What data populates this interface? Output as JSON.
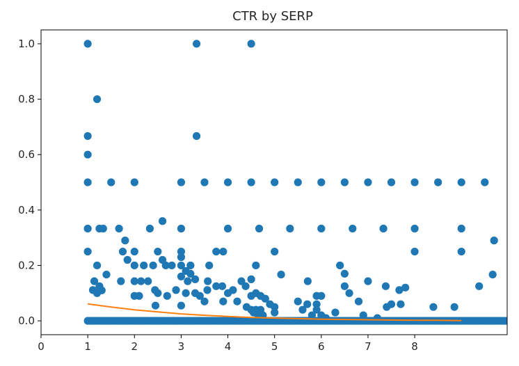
{
  "chart_data": {
    "type": "scatter",
    "title": "CTR by SERP",
    "xlabel": "",
    "ylabel": "",
    "xlim": [
      0,
      9.98
    ],
    "ylim": [
      -0.05,
      1.05
    ],
    "grid": false,
    "x_ticks": [
      0,
      1,
      2,
      3,
      4,
      5,
      6,
      7,
      8
    ],
    "y_ticks": [
      0.0,
      0.2,
      0.4,
      0.6,
      0.8,
      1.0
    ],
    "x_tick_labels": [
      "0",
      "1",
      "2",
      "3",
      "4",
      "5",
      "6",
      "7",
      "8"
    ],
    "y_tick_labels": [
      "0.0",
      "0.2",
      "0.4",
      "0.6",
      "0.8",
      "1.0"
    ],
    "colors": {
      "scatter": "#1f77b4",
      "line": "#ff7f0e"
    },
    "series": [
      {
        "type": "scatter",
        "points": [
          [
            1.0,
            1.0
          ],
          [
            3.33,
            1.0
          ],
          [
            4.5,
            1.0
          ],
          [
            1.2,
            0.8
          ],
          [
            1.0,
            0.667
          ],
          [
            3.33,
            0.667
          ],
          [
            1.0,
            0.6
          ],
          [
            1.0,
            0.5
          ],
          [
            1.5,
            0.5
          ],
          [
            2.0,
            0.5
          ],
          [
            3.0,
            0.5
          ],
          [
            3.5,
            0.5
          ],
          [
            4.0,
            0.5
          ],
          [
            4.5,
            0.5
          ],
          [
            5.0,
            0.5
          ],
          [
            5.5,
            0.5
          ],
          [
            6.0,
            0.5
          ],
          [
            6.5,
            0.5
          ],
          [
            7.0,
            0.5
          ],
          [
            7.5,
            0.5
          ],
          [
            8.0,
            0.5
          ],
          [
            8.5,
            0.5
          ],
          [
            9.0,
            0.5
          ],
          [
            9.5,
            0.5
          ],
          [
            1.0,
            0.333
          ],
          [
            1.25,
            0.333
          ],
          [
            1.33,
            0.333
          ],
          [
            1.67,
            0.333
          ],
          [
            2.33,
            0.333
          ],
          [
            3.0,
            0.333
          ],
          [
            4.0,
            0.333
          ],
          [
            4.67,
            0.333
          ],
          [
            5.33,
            0.333
          ],
          [
            6.0,
            0.333
          ],
          [
            6.67,
            0.333
          ],
          [
            7.33,
            0.333
          ],
          [
            8.0,
            0.333
          ],
          [
            9.0,
            0.333
          ],
          [
            2.6,
            0.36
          ],
          [
            1.8,
            0.29
          ],
          [
            9.7,
            0.29
          ],
          [
            1.0,
            0.25
          ],
          [
            1.75,
            0.25
          ],
          [
            2.0,
            0.25
          ],
          [
            2.5,
            0.25
          ],
          [
            3.0,
            0.25
          ],
          [
            3.75,
            0.25
          ],
          [
            3.9,
            0.25
          ],
          [
            5.0,
            0.25
          ],
          [
            8.0,
            0.25
          ],
          [
            9.0,
            0.25
          ],
          [
            1.85,
            0.22
          ],
          [
            3.0,
            0.23
          ],
          [
            2.6,
            0.22
          ],
          [
            6.4,
            0.2
          ],
          [
            6.5,
            0.17
          ],
          [
            9.67,
            0.167
          ],
          [
            1.4,
            0.167
          ],
          [
            5.14,
            0.167
          ],
          [
            1.2,
            0.2
          ],
          [
            2.0,
            0.2
          ],
          [
            2.2,
            0.2
          ],
          [
            2.4,
            0.2
          ],
          [
            2.67,
            0.2
          ],
          [
            2.8,
            0.2
          ],
          [
            3.0,
            0.2
          ],
          [
            3.2,
            0.2
          ],
          [
            3.6,
            0.2
          ],
          [
            4.6,
            0.2
          ],
          [
            3.1,
            0.18
          ],
          [
            3.2,
            0.17
          ],
          [
            3.0,
            0.16
          ],
          [
            3.3,
            0.15
          ],
          [
            4.5,
            0.15
          ],
          [
            1.14,
            0.143
          ],
          [
            1.71,
            0.143
          ],
          [
            2.0,
            0.143
          ],
          [
            2.14,
            0.143
          ],
          [
            2.29,
            0.143
          ],
          [
            3.14,
            0.143
          ],
          [
            3.57,
            0.143
          ],
          [
            5.71,
            0.143
          ],
          [
            7.0,
            0.143
          ],
          [
            4.29,
            0.143
          ],
          [
            1.25,
            0.125
          ],
          [
            3.75,
            0.125
          ],
          [
            3.88,
            0.125
          ],
          [
            6.5,
            0.125
          ],
          [
            7.38,
            0.125
          ],
          [
            9.38,
            0.125
          ],
          [
            4.38,
            0.125
          ],
          [
            1.11,
            0.111
          ],
          [
            2.44,
            0.111
          ],
          [
            2.89,
            0.111
          ],
          [
            3.56,
            0.111
          ],
          [
            4.11,
            0.111
          ],
          [
            7.67,
            0.111
          ],
          [
            6.6,
            0.1
          ],
          [
            7.8,
            0.12
          ],
          [
            1.2,
            0.1
          ],
          [
            1.3,
            0.11
          ],
          [
            2.5,
            0.1
          ],
          [
            3.1,
            0.1
          ],
          [
            3.3,
            0.1
          ],
          [
            4.0,
            0.1
          ],
          [
            4.6,
            0.1
          ],
          [
            4.7,
            0.09
          ],
          [
            4.8,
            0.08
          ],
          [
            2.0,
            0.09
          ],
          [
            2.1,
            0.09
          ],
          [
            2.7,
            0.09
          ],
          [
            3.4,
            0.09
          ],
          [
            4.5,
            0.09
          ],
          [
            5.9,
            0.09
          ],
          [
            6.0,
            0.09
          ],
          [
            3.5,
            0.07
          ],
          [
            3.9,
            0.07
          ],
          [
            4.2,
            0.07
          ],
          [
            5.5,
            0.07
          ],
          [
            5.7,
            0.06
          ],
          [
            5.9,
            0.06
          ],
          [
            6.8,
            0.07
          ],
          [
            7.5,
            0.06
          ],
          [
            7.7,
            0.06
          ],
          [
            2.45,
            0.055
          ],
          [
            3.0,
            0.055
          ],
          [
            4.4,
            0.05
          ],
          [
            4.9,
            0.06
          ],
          [
            5.0,
            0.05
          ],
          [
            7.4,
            0.05
          ],
          [
            8.4,
            0.05
          ],
          [
            8.85,
            0.05
          ],
          [
            4.5,
            0.04
          ],
          [
            4.6,
            0.04
          ],
          [
            4.7,
            0.04
          ],
          [
            5.6,
            0.04
          ],
          [
            5.9,
            0.04
          ],
          [
            6.3,
            0.03
          ],
          [
            4.55,
            0.03
          ],
          [
            4.65,
            0.02
          ],
          [
            4.75,
            0.02
          ],
          [
            5.0,
            0.03
          ],
          [
            5.8,
            0.02
          ],
          [
            6.0,
            0.02
          ],
          [
            6.1,
            0.01
          ],
          [
            6.9,
            0.02
          ],
          [
            7.2,
            0.01
          ]
        ],
        "baseline": {
          "y": 0.0,
          "x_range": [
            1.0,
            9.98
          ]
        }
      },
      {
        "type": "line",
        "points": [
          [
            1.0,
            0.061
          ],
          [
            1.5,
            0.05
          ],
          [
            2.0,
            0.04
          ],
          [
            2.5,
            0.032
          ],
          [
            3.0,
            0.025
          ],
          [
            3.5,
            0.02
          ],
          [
            4.0,
            0.016
          ],
          [
            4.5,
            0.012
          ],
          [
            5.0,
            0.01
          ],
          [
            5.5,
            0.008
          ],
          [
            6.0,
            0.006
          ],
          [
            6.5,
            0.005
          ],
          [
            7.0,
            0.004
          ],
          [
            7.5,
            0.003
          ],
          [
            8.0,
            0.002
          ],
          [
            8.5,
            0.002
          ],
          [
            9.0,
            0.001
          ]
        ]
      }
    ]
  }
}
